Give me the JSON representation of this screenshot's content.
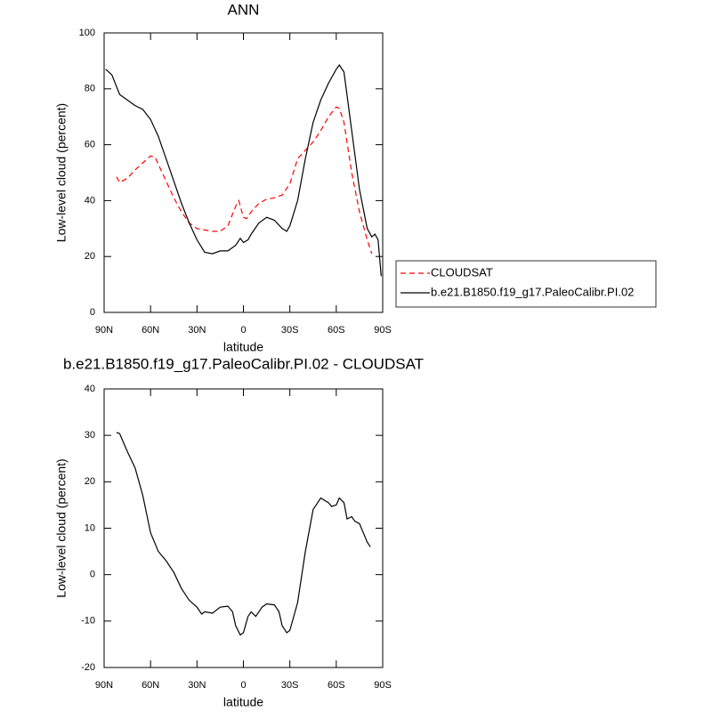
{
  "chart_data": [
    {
      "type": "line",
      "title": "ANN",
      "xlabel": "latitude",
      "ylabel": "Low-level cloud (percent)",
      "xlim": [
        90,
        -90
      ],
      "xticks": [
        {
          "value": 90,
          "label": "90N"
        },
        {
          "value": 60,
          "label": "60N"
        },
        {
          "value": 30,
          "label": "30N"
        },
        {
          "value": 0,
          "label": "0"
        },
        {
          "value": -30,
          "label": "30S"
        },
        {
          "value": -60,
          "label": "60S"
        },
        {
          "value": -90,
          "label": "90S"
        }
      ],
      "ylim": [
        0,
        100
      ],
      "yticks": [
        0,
        20,
        40,
        60,
        80,
        100
      ],
      "legend": "right",
      "series": [
        {
          "name": "CLOUDSAT",
          "color": "#ff0000",
          "linestyle": "dashed",
          "x": [
            82,
            80,
            75,
            70,
            65,
            60,
            57,
            55,
            50,
            45,
            40,
            35,
            30,
            25,
            20,
            15,
            10,
            5,
            3,
            0,
            -2,
            -5,
            -10,
            -15,
            -20,
            -25,
            -30,
            -35,
            -40,
            -45,
            -50,
            -55,
            -60,
            -62,
            -65,
            -70,
            -75,
            -80,
            -83
          ],
          "values": [
            48.5,
            46.5,
            48,
            51,
            53.5,
            56,
            55.5,
            53,
            47,
            41,
            36,
            32,
            30,
            29.5,
            29,
            29,
            31,
            38,
            40,
            34,
            33.5,
            36,
            39,
            40.5,
            41,
            42,
            46,
            55,
            58,
            61,
            65,
            70,
            73.5,
            73,
            68,
            50,
            36,
            26,
            21
          ]
        },
        {
          "name": "b.e21.B1850.f19_g17.PaleoCalibr.PI.02",
          "color": "#000000",
          "linestyle": "solid",
          "x": [
            89,
            85,
            80,
            75,
            70,
            65,
            60,
            55,
            50,
            45,
            40,
            35,
            30,
            25,
            20,
            15,
            10,
            5,
            2,
            0,
            -3,
            -5,
            -10,
            -15,
            -20,
            -25,
            -28,
            -30,
            -35,
            -40,
            -45,
            -50,
            -55,
            -60,
            -62,
            -65,
            -70,
            -75,
            -80,
            -83,
            -85,
            -87,
            -89
          ],
          "values": [
            87,
            85,
            78,
            76,
            74,
            72.6,
            69,
            63,
            55,
            47,
            39,
            32,
            26,
            21.5,
            21,
            22,
            22,
            24,
            26.5,
            25,
            26,
            28,
            32,
            34,
            33,
            30,
            29,
            31,
            40,
            55,
            68,
            76,
            82,
            87,
            88.5,
            86,
            65,
            44,
            30,
            27,
            28,
            26,
            13
          ]
        }
      ]
    },
    {
      "type": "line",
      "title": "b.e21.B1850.f19_g17.PaleoCalibr.PI.02 - CLOUDSAT",
      "xlabel": "latitude",
      "ylabel": "Low-level cloud (percent)",
      "xlim": [
        90,
        -90
      ],
      "xticks": [
        {
          "value": 90,
          "label": "90N"
        },
        {
          "value": 60,
          "label": "60N"
        },
        {
          "value": 30,
          "label": "30N"
        },
        {
          "value": 0,
          "label": "0"
        },
        {
          "value": -30,
          "label": "30S"
        },
        {
          "value": -60,
          "label": "60S"
        },
        {
          "value": -90,
          "label": "90S"
        }
      ],
      "ylim": [
        -20,
        40
      ],
      "yticks": [
        -20,
        -10,
        0,
        10,
        20,
        30,
        40
      ],
      "series": [
        {
          "color": "#000000",
          "linestyle": "solid",
          "x": [
            82,
            80,
            75,
            70,
            65,
            60,
            55,
            50,
            45,
            40,
            35,
            30,
            27,
            25,
            20,
            15,
            10,
            7,
            5,
            2,
            0,
            -3,
            -5,
            -8,
            -12,
            -15,
            -20,
            -23,
            -25,
            -28,
            -30,
            -35,
            -40,
            -45,
            -50,
            -55,
            -57,
            -60,
            -62,
            -65,
            -67,
            -70,
            -72,
            -75,
            -80,
            -82
          ],
          "values": [
            30.6,
            30.4,
            26.5,
            23,
            17,
            9,
            5,
            3,
            0.5,
            -3,
            -5.5,
            -7,
            -8.5,
            -8,
            -8.3,
            -7,
            -6.8,
            -8,
            -11,
            -13,
            -12.5,
            -9,
            -8,
            -9,
            -7,
            -6.3,
            -6.5,
            -8,
            -11,
            -12.5,
            -12,
            -6,
            5,
            14,
            16.5,
            15.5,
            14.7,
            15,
            16.5,
            15.5,
            12,
            12.5,
            11.5,
            11,
            7,
            6
          ]
        }
      ]
    }
  ]
}
